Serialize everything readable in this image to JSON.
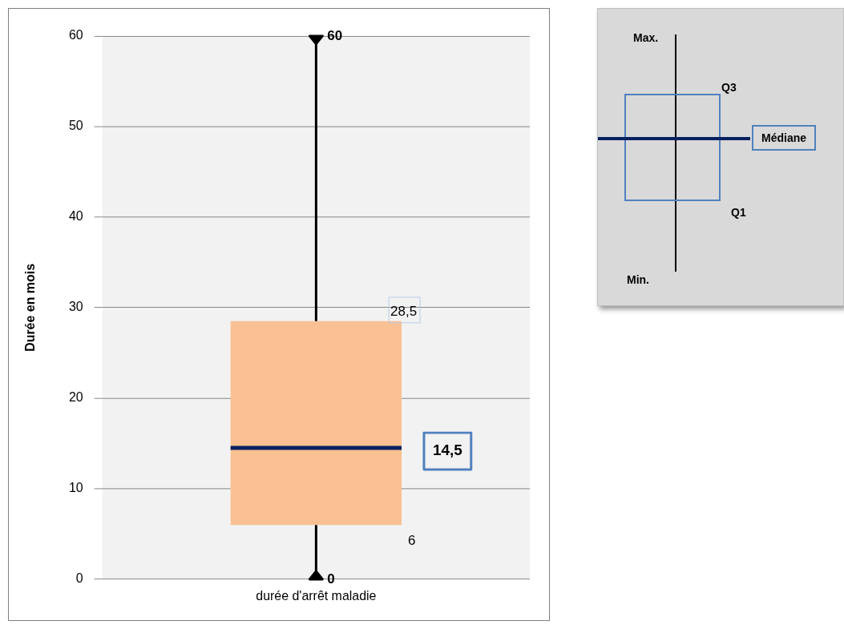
{
  "chart_data": {
    "type": "box",
    "ylabel": "Durée en mois",
    "categories": [
      "durée d'arrêt maladie"
    ],
    "boxes": [
      {
        "low": 0,
        "q1": 6,
        "median": 14.5,
        "q3": 28.5,
        "high": 60
      }
    ],
    "color": "#f9c193",
    "ylim": [
      0,
      60
    ],
    "yticks": [
      0,
      10,
      20,
      30,
      40,
      50,
      60
    ],
    "grid": "y",
    "annotations": [
      "60",
      "28,5",
      "14,5",
      "6",
      "0",
      "Max.",
      "Q3",
      "Médiane",
      "Q1",
      "Min."
    ]
  }
}
